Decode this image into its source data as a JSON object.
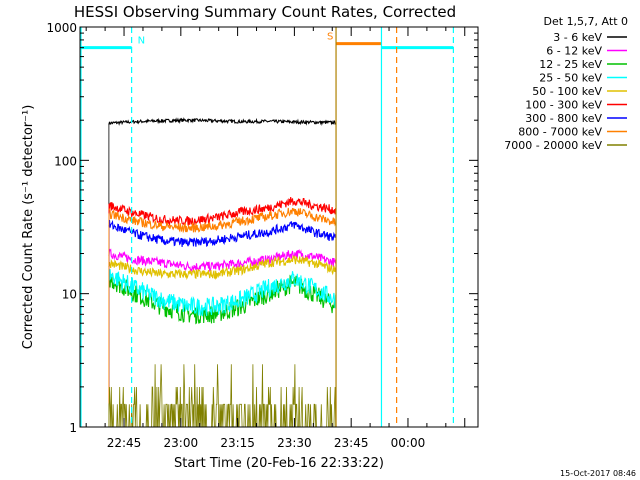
{
  "chart_data": {
    "type": "line",
    "title": "HESSI Observing Summary Count Rates, Corrected",
    "xlabel": "Start Time (20-Feb-16 22:33:22)",
    "ylabel": "Corrected Count Rate (s⁻¹ detector⁻¹)",
    "yscale": "log",
    "ylim": [
      1,
      1000
    ],
    "y_ticks": [
      {
        "value": 1,
        "label": "1"
      },
      {
        "value": 10,
        "label": "10"
      },
      {
        "value": 100,
        "label": "100"
      },
      {
        "value": 1000,
        "label": "1000"
      }
    ],
    "x_ticks": [
      {
        "value": "22:45",
        "label": "22:45"
      },
      {
        "value": "23:00",
        "label": "23:00"
      },
      {
        "value": "23:15",
        "label": "23:15"
      },
      {
        "value": "23:30",
        "label": "23:30"
      },
      {
        "value": "23:45",
        "label": "23:45"
      },
      {
        "value": "00:00",
        "label": "00:00"
      }
    ],
    "xlim": [
      "22:33:22",
      "00:18:30"
    ],
    "legend_header": "Det 1,5,7, Att 0",
    "legend_position": "right",
    "series": [
      {
        "name": "3 - 6 keV",
        "color": "#000000",
        "start": "22:41",
        "end": "23:41",
        "x": [
          "22:41",
          "22:48",
          "22:55",
          "23:02",
          "23:09",
          "23:16",
          "23:23",
          "23:30",
          "23:35",
          "23:41"
        ],
        "values": [
          190,
          195,
          198,
          200,
          198,
          195,
          196,
          194,
          193,
          192
        ]
      },
      {
        "name": "6 - 12 keV",
        "color": "#ff00ff",
        "start": "22:41",
        "end": "23:41",
        "x": [
          "22:41",
          "22:48",
          "22:55",
          "23:02",
          "23:09",
          "23:16",
          "23:23",
          "23:30",
          "23:35",
          "23:41"
        ],
        "values": [
          20,
          18,
          17,
          16,
          16,
          17,
          18,
          20,
          19,
          17
        ]
      },
      {
        "name": "12 - 25 keV",
        "color": "#00c000",
        "start": "22:41",
        "end": "23:41",
        "x": [
          "22:41",
          "22:48",
          "22:55",
          "23:02",
          "23:09",
          "23:16",
          "23:23",
          "23:30",
          "23:35",
          "23:41"
        ],
        "values": [
          13,
          10,
          8,
          7,
          7,
          8,
          10,
          12,
          10,
          8
        ]
      },
      {
        "name": "25 - 50 keV",
        "color": "#00ffff",
        "start": "22:41",
        "end": "23:41",
        "x": [
          "22:41",
          "22:48",
          "22:55",
          "23:02",
          "23:09",
          "23:16",
          "23:23",
          "23:30",
          "23:35",
          "23:41"
        ],
        "values": [
          14,
          11,
          9,
          8,
          8,
          9,
          11,
          13,
          11,
          9
        ]
      },
      {
        "name": "50 - 100 keV",
        "color": "#e0c000",
        "start": "22:41",
        "end": "23:41",
        "x": [
          "22:41",
          "22:48",
          "22:55",
          "23:02",
          "23:09",
          "23:16",
          "23:23",
          "23:30",
          "23:35",
          "23:41"
        ],
        "values": [
          17,
          15,
          14,
          14,
          14,
          15,
          17,
          18,
          17,
          15
        ]
      },
      {
        "name": "100 - 300 keV",
        "color": "#ff0000",
        "start": "22:41",
        "end": "23:41",
        "x": [
          "22:41",
          "22:48",
          "22:55",
          "23:02",
          "23:09",
          "23:16",
          "23:23",
          "23:30",
          "23:35",
          "23:41"
        ],
        "values": [
          46,
          40,
          36,
          35,
          37,
          41,
          44,
          50,
          46,
          42
        ]
      },
      {
        "name": "300 - 800 keV",
        "color": "#0000ff",
        "start": "22:41",
        "end": "23:41",
        "x": [
          "22:41",
          "22:48",
          "22:55",
          "23:02",
          "23:09",
          "23:16",
          "23:23",
          "23:30",
          "23:35",
          "23:41"
        ],
        "values": [
          33,
          28,
          25,
          24,
          25,
          27,
          29,
          33,
          29,
          26
        ]
      },
      {
        "name": "800 - 7000 keV",
        "color": "#ff8000",
        "start": "22:41",
        "end": "23:41",
        "x": [
          "22:41",
          "22:48",
          "22:55",
          "23:02",
          "23:09",
          "23:16",
          "23:23",
          "23:30",
          "23:35",
          "23:41"
        ],
        "values": [
          40,
          35,
          32,
          31,
          32,
          35,
          38,
          42,
          38,
          34
        ]
      },
      {
        "name": "7000 - 20000 keV",
        "color": "#808000",
        "start": "22:41",
        "end": "23:41",
        "x": [
          "22:41",
          "22:48",
          "22:55",
          "23:02",
          "23:09",
          "23:16",
          "23:23",
          "23:30",
          "23:35",
          "23:41"
        ],
        "values": [
          1.5,
          1.2,
          1,
          1,
          1,
          1,
          1.5,
          2,
          1.5,
          1.2
        ]
      }
    ],
    "markers": [
      {
        "label": "N",
        "color": "#00ffff",
        "start": "22:33:22",
        "end": "22:47",
        "y": 700
      },
      {
        "label": "S",
        "color": "#ff8000",
        "start": "23:41",
        "end": "23:53",
        "y": 750
      },
      {
        "label": "",
        "color": "#00ffff",
        "start": "23:53",
        "end": "00:12",
        "y": 700
      }
    ],
    "vertical_lines": [
      {
        "x": "22:33:22",
        "color": "#00ffff",
        "style": "solid"
      },
      {
        "x": "22:47",
        "color": "#00ffff",
        "style": "dashed"
      },
      {
        "x": "23:41",
        "color": "#b08000",
        "style": "solid"
      },
      {
        "x": "23:53",
        "color": "#00ffff",
        "style": "solid"
      },
      {
        "x": "23:57",
        "color": "#ff8000",
        "style": "dashed"
      },
      {
        "x": "00:12",
        "color": "#00ffff",
        "style": "dashed"
      }
    ]
  },
  "footer": {
    "timestamp": "15-Oct-2017 08:46"
  },
  "colors": {
    "background": "#ffffff",
    "axes": "#000000"
  }
}
